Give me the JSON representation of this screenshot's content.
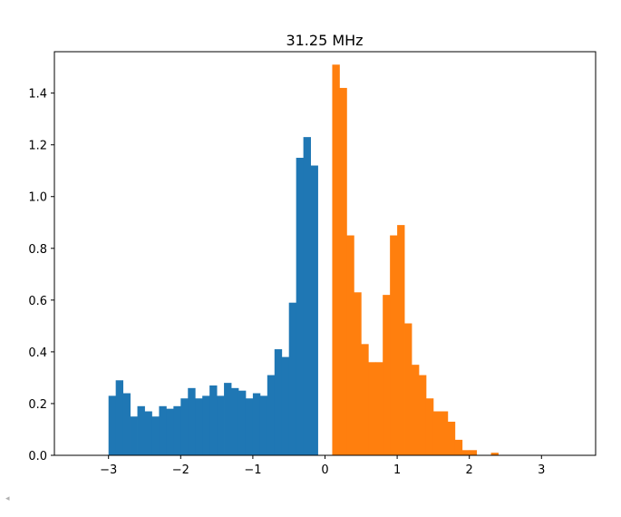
{
  "chart_data": {
    "type": "bar",
    "title": "31.25 MHz",
    "xlabel": "",
    "ylabel": "",
    "xlim": [
      -3.75,
      3.75
    ],
    "ylim": [
      0,
      1.56
    ],
    "grid": false,
    "x_ticks": [
      -3,
      -2,
      -1,
      0,
      1,
      2,
      3
    ],
    "x_tick_labels": [
      "−3",
      "−2",
      "−1",
      "0",
      "1",
      "2",
      "3"
    ],
    "y_ticks": [
      0.0,
      0.2,
      0.4,
      0.6,
      0.8,
      1.0,
      1.2,
      1.4
    ],
    "y_tick_labels": [
      "0.0",
      "0.2",
      "0.4",
      "0.6",
      "0.8",
      "1.0",
      "1.2",
      "1.4"
    ],
    "series": [
      {
        "color": "#1f77b4",
        "bin_start": -3.0,
        "bin_width": 0.1,
        "values": [
          0.23,
          0.29,
          0.24,
          0.15,
          0.19,
          0.17,
          0.15,
          0.19,
          0.18,
          0.19,
          0.22,
          0.26,
          0.22,
          0.23,
          0.27,
          0.23,
          0.28,
          0.26,
          0.25,
          0.22,
          0.24,
          0.23,
          0.31,
          0.41,
          0.38,
          0.59,
          1.15,
          1.23,
          1.12
        ]
      },
      {
        "color": "#ff7f0e",
        "bin_start": 0.1,
        "bin_width": 0.1,
        "values": [
          1.51,
          1.42,
          0.85,
          0.63,
          0.43,
          0.36,
          0.36,
          0.62,
          0.85,
          0.89,
          0.51,
          0.35,
          0.31,
          0.22,
          0.17,
          0.17,
          0.13,
          0.06,
          0.02,
          0.02,
          0.0,
          0.0,
          0.01
        ]
      }
    ]
  },
  "ui": {
    "scroll_arrow": "◂"
  }
}
